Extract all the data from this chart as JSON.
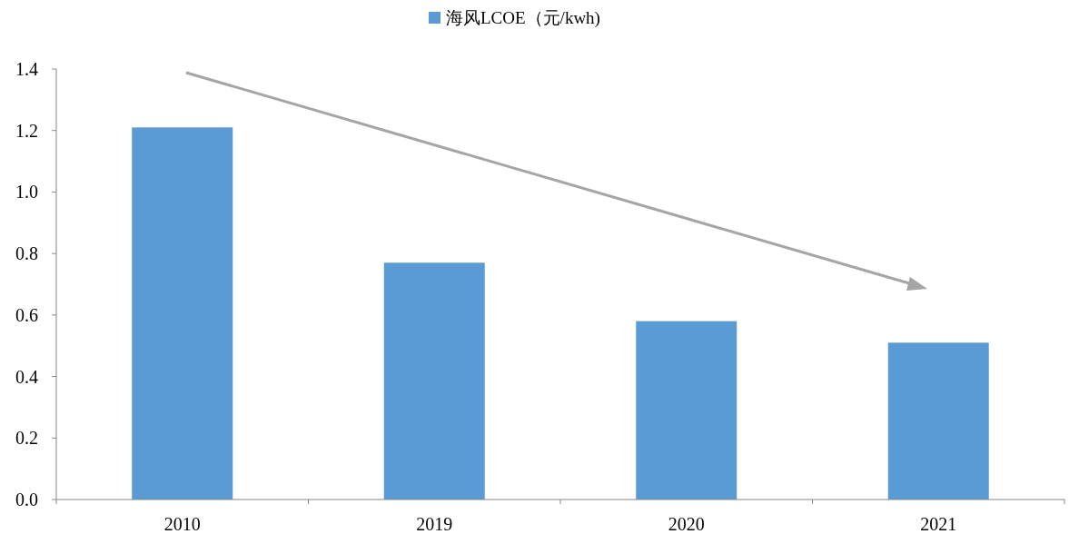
{
  "chart_data": {
    "type": "bar",
    "categories": [
      "2010",
      "2019",
      "2020",
      "2021"
    ],
    "series": [
      {
        "name": "海风LCOE（元/kwh)",
        "color": "#5b9bd5",
        "values": [
          1.21,
          0.77,
          0.58,
          0.51
        ]
      }
    ],
    "ylim": [
      0,
      1.4
    ],
    "yticks": [
      {
        "value": 0,
        "label": "0.0"
      },
      {
        "value": 0.2,
        "label": "0.2"
      },
      {
        "value": 0.4,
        "label": "0.4"
      },
      {
        "value": 0.6,
        "label": "0.6"
      },
      {
        "value": 0.8,
        "label": "0.8"
      },
      {
        "value": 1.0,
        "label": "1.0"
      },
      {
        "value": 1.2,
        "label": "1.2"
      },
      {
        "value": 1.4,
        "label": "1.4"
      }
    ],
    "legend": "top",
    "grid": false
  }
}
